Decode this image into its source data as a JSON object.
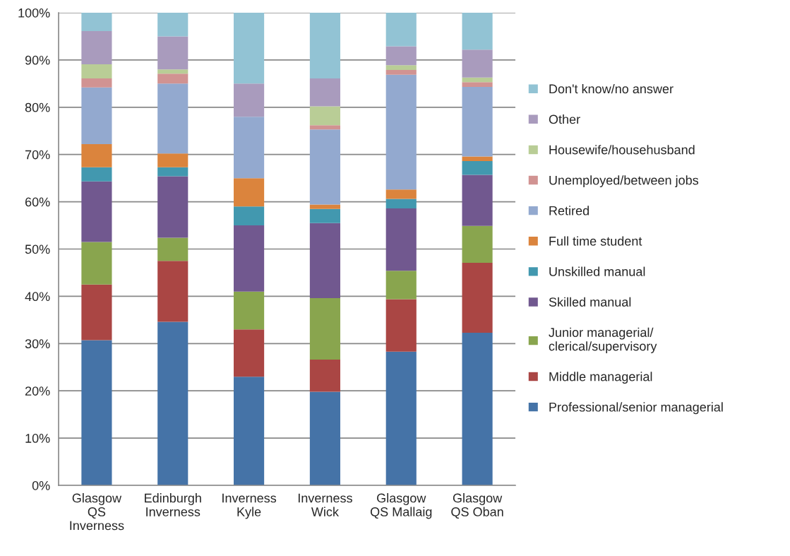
{
  "chart_data": {
    "type": "bar",
    "stacked": true,
    "categories": [
      "Glasgow\nQS\nInverness",
      "Edinburgh\nInverness",
      "Inverness\nKyle",
      "Inverness\nWick",
      "Glasgow\nQS Mallaig",
      "Glasgow\nQS Oban"
    ],
    "series": [
      {
        "name": "Professional/senior managerial",
        "color": "#4573a7",
        "values": [
          30.7,
          34.6,
          23.0,
          19.8,
          28.3,
          32.3
        ]
      },
      {
        "name": "Middle managerial",
        "color": "#aa4644",
        "values": [
          11.8,
          12.9,
          10.0,
          6.8,
          11.1,
          14.8
        ]
      },
      {
        "name": "Junior managerial/\nclerical/supervisory",
        "color": "#89a54e",
        "values": [
          9.0,
          4.9,
          8.0,
          13.0,
          6.0,
          7.8
        ]
      },
      {
        "name": "Skilled manual",
        "color": "#71588f",
        "values": [
          12.8,
          13.0,
          14.0,
          15.9,
          13.2,
          10.8
        ]
      },
      {
        "name": "Unskilled manual",
        "color": "#4298af",
        "values": [
          3.0,
          1.9,
          4.0,
          3.0,
          2.0,
          2.9
        ]
      },
      {
        "name": "Full time student",
        "color": "#db843d",
        "values": [
          4.9,
          2.9,
          6.0,
          0.9,
          2.0,
          1.0
        ]
      },
      {
        "name": "Retired",
        "color": "#93a9cf",
        "values": [
          12.0,
          14.8,
          13.0,
          15.9,
          24.3,
          14.7
        ]
      },
      {
        "name": "Unemployed/between jobs",
        "color": "#d19392",
        "values": [
          1.9,
          2.1,
          0,
          0.9,
          1.0,
          1.0
        ]
      },
      {
        "name": "Housewife/househusband",
        "color": "#b9cd96",
        "values": [
          3.0,
          0.9,
          0,
          4.0,
          1.0,
          1.0
        ]
      },
      {
        "name": "Other",
        "color": "#a99bbd",
        "values": [
          7.0,
          7.0,
          7.0,
          5.9,
          4.0,
          5.9
        ]
      },
      {
        "name": "Don't know/no answer",
        "color": "#92c3d4",
        "values": [
          3.9,
          5.0,
          15.0,
          13.9,
          7.1,
          7.8
        ]
      }
    ],
    "ylim": [
      0,
      100
    ],
    "yticks": [
      {
        "value": 0,
        "label": "0%"
      },
      {
        "value": 10,
        "label": "10%"
      },
      {
        "value": 20,
        "label": "20%"
      },
      {
        "value": 30,
        "label": "30%"
      },
      {
        "value": 40,
        "label": "40%"
      },
      {
        "value": 50,
        "label": "50%"
      },
      {
        "value": 60,
        "label": "60%"
      },
      {
        "value": 70,
        "label": "70%"
      },
      {
        "value": 80,
        "label": "80%"
      },
      {
        "value": 90,
        "label": "90%"
      },
      {
        "value": 100,
        "label": "100%"
      }
    ],
    "grid": "y",
    "legend": "right"
  }
}
